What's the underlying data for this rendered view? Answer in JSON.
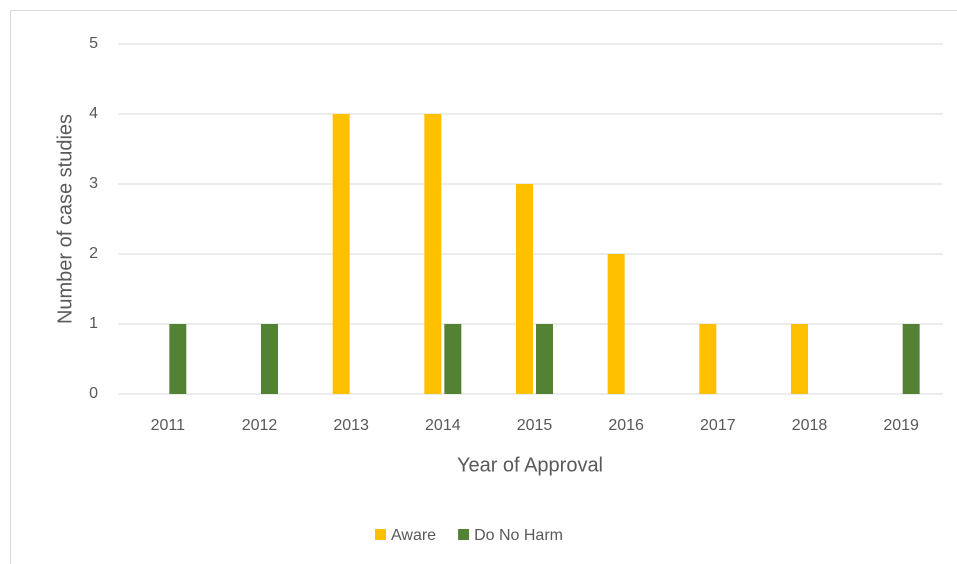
{
  "chart_data": {
    "type": "bar",
    "x_label": "Year of Approval",
    "y_label": "Number of case studies",
    "categories": [
      "2011",
      "2012",
      "2013",
      "2014",
      "2015",
      "2016",
      "2017",
      "2018",
      "2019"
    ],
    "series": [
      {
        "name": "Aware",
        "color": "#FFC000",
        "values": [
          0,
          0,
          4,
          4,
          3,
          2,
          1,
          1,
          0
        ]
      },
      {
        "name": "Do No Harm",
        "color": "#548235",
        "values": [
          1,
          1,
          0,
          1,
          1,
          0,
          0,
          0,
          1
        ]
      }
    ],
    "ylim": [
      0,
      5
    ],
    "yticks": [
      0,
      1,
      2,
      3,
      4,
      5
    ],
    "grid": true,
    "legend": "bottom"
  }
}
